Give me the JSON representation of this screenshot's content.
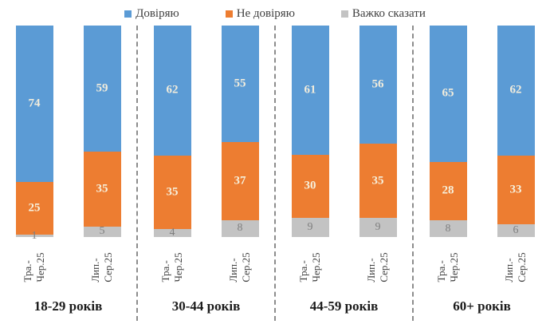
{
  "chart_data": {
    "type": "bar",
    "stacked": true,
    "orientation": "vertical",
    "unit": "percent",
    "ylim": [
      0,
      100
    ],
    "grid": false,
    "legend_position": "top",
    "series_meta": [
      {
        "key": "trust",
        "label": "Довіряю",
        "color": "#5B9BD5",
        "label_color": "#F1ECDC"
      },
      {
        "key": "distrust",
        "label": "Не довіряю",
        "color": "#ED7D31",
        "label_color": "#F6F0DC"
      },
      {
        "key": "hard_to_say",
        "label": "Важко сказати",
        "color": "#C3C3C3",
        "label_color": "#7F7F7F"
      }
    ],
    "groups": [
      {
        "label": "18-29 років",
        "bars": [
          {
            "period": "Тра.-Чер.25",
            "period_lines": [
              "Тра.-",
              "Чер.25"
            ],
            "values": [
              74,
              25,
              1
            ]
          },
          {
            "period": "Лип.-Сер.25",
            "period_lines": [
              "Лип.-",
              "Сер.25"
            ],
            "values": [
              59,
              35,
              5
            ]
          }
        ]
      },
      {
        "label": "30-44 років",
        "bars": [
          {
            "period": "Тра.-Чер.25",
            "period_lines": [
              "Тра.-",
              "Чер.25"
            ],
            "values": [
              62,
              35,
              4
            ]
          },
          {
            "period": "Лип.-Сер.25",
            "period_lines": [
              "Лип.-",
              "Сер.25"
            ],
            "values": [
              55,
              37,
              8
            ]
          }
        ]
      },
      {
        "label": "44-59 років",
        "bars": [
          {
            "period": "Тра.-Чер.25",
            "period_lines": [
              "Тра.-",
              "Чер.25"
            ],
            "values": [
              61,
              30,
              9
            ]
          },
          {
            "period": "Лип.-Сер.25",
            "period_lines": [
              "Лип.-",
              "Сер.25"
            ],
            "values": [
              56,
              35,
              9
            ]
          }
        ]
      },
      {
        "label": "60+ років",
        "bars": [
          {
            "period": "Тра.-Чер.25",
            "period_lines": [
              "Тра.-",
              "Чер.25"
            ],
            "values": [
              65,
              28,
              8
            ]
          },
          {
            "period": "Лип.-Сер.25",
            "period_lines": [
              "Лип.-",
              "Сер.25"
            ],
            "values": [
              62,
              33,
              6
            ]
          }
        ]
      }
    ]
  },
  "colors": {
    "separator": "#8C8C8C",
    "background": "#FFFFFF"
  }
}
